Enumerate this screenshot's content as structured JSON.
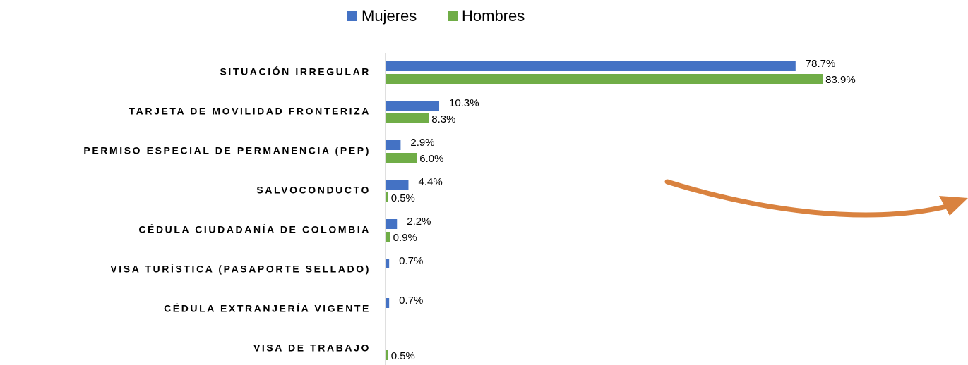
{
  "chart_data": {
    "type": "bar",
    "orientation": "horizontal",
    "categories": [
      "SITUACIÓN IRREGULAR",
      "TARJETA DE MOVILIDAD FRONTERIZA",
      "PERMISO ESPECIAL DE PERMANENCIA (PEP)",
      "SALVOCONDUCTO",
      "CÉDULA CIUDADANÍA DE COLOMBIA",
      "VISA TURÍSTICA (PASAPORTE SELLADO)",
      "CÉDULA EXTRANJERÍA VIGENTE",
      "VISA DE TRABAJO"
    ],
    "series": [
      {
        "name": "Mujeres",
        "color": "#4472c4",
        "values": [
          78.7,
          10.3,
          2.9,
          4.4,
          2.2,
          0.7,
          0.7,
          null
        ],
        "value_labels": [
          "78.7%",
          "10.3%",
          "2.9%",
          "4.4%",
          "2.2%",
          "0.7%",
          "0.7%",
          null
        ]
      },
      {
        "name": "Hombres",
        "color": "#70ad47",
        "values": [
          83.9,
          8.3,
          6.0,
          0.5,
          0.9,
          null,
          null,
          0.5
        ],
        "value_labels": [
          "83.9%",
          "8.3%",
          "6.0%",
          "0.5%",
          "0.9%",
          null,
          null,
          "0.5%"
        ]
      }
    ],
    "legend": "top"
  }
}
